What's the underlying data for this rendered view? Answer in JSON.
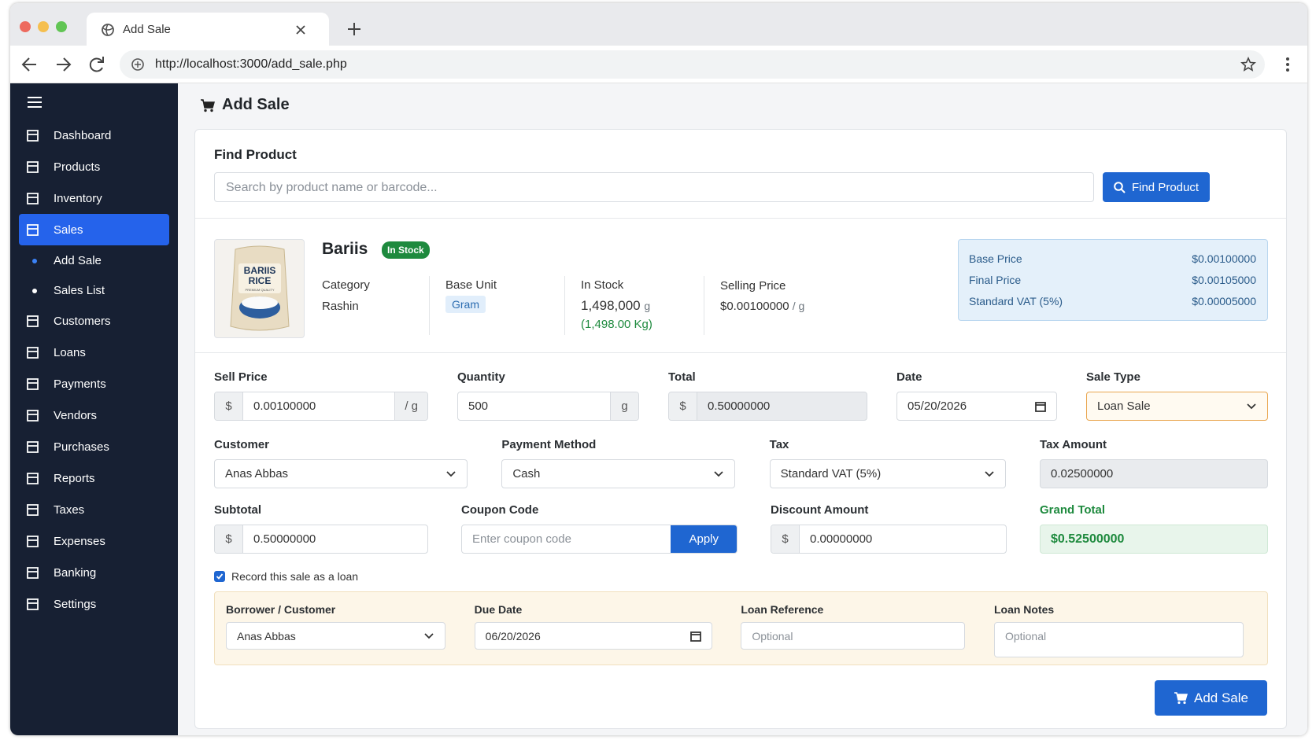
{
  "browser": {
    "tab_title": "Add Sale",
    "url": "http://localhost:3000/add_sale.php"
  },
  "sidebar": {
    "items": [
      {
        "label": "Dashboard"
      },
      {
        "label": "Products"
      },
      {
        "label": "Inventory"
      },
      {
        "label": "Sales",
        "active": true,
        "sub_items": [
          "Add Sale",
          "Sales List"
        ]
      },
      {
        "label": "Customers"
      },
      {
        "label": "Loans"
      },
      {
        "label": "Payments"
      },
      {
        "label": "Vendors"
      },
      {
        "label": "Purchases"
      },
      {
        "label": "Reports"
      },
      {
        "label": "Taxes"
      },
      {
        "label": "Expenses"
      },
      {
        "label": "Banking"
      },
      {
        "label": "Settings"
      }
    ]
  },
  "page": {
    "title": "Add Sale"
  },
  "find_product": {
    "title": "Find Product",
    "placeholder": "Search by product name or barcode...",
    "button": "Find Product"
  },
  "product": {
    "image_text": {
      "line1": "BARIIS",
      "line2": "RICE",
      "line3": "PREMIUM QUALITY"
    },
    "name": "Bariis",
    "status": "In Stock",
    "category": {
      "label": "Category",
      "value": "Rashin"
    },
    "base_unit": {
      "label": "Base Unit",
      "value": "Gram"
    },
    "in_stock": {
      "label": "In Stock",
      "quantity": "1,498,000",
      "unit": "g",
      "converted": "(1,498.00 Kg)"
    },
    "selling_price": {
      "label": "Selling Price",
      "value": "$0.00100000",
      "unit": "/ g"
    }
  },
  "price_summary": [
    {
      "label": "Base Price",
      "value": "$0.00100000"
    },
    {
      "label": "Final Price",
      "value": "$0.00105000"
    },
    {
      "label": "Standard VAT (5%)",
      "value": "$0.00005000"
    }
  ],
  "form": {
    "sell_price": {
      "label": "Sell Price",
      "prefix": "$",
      "value": "0.00100000",
      "suffix": "/ g"
    },
    "quantity": {
      "label": "Quantity",
      "value": "500",
      "suffix": "g"
    },
    "total": {
      "label": "Total",
      "prefix": "$",
      "value": "0.50000000"
    },
    "date": {
      "label": "Date",
      "value": "05/20/2026"
    },
    "sale_type": {
      "label": "Sale Type",
      "value": "Loan Sale"
    },
    "customer": {
      "label": "Customer",
      "value": "Anas Abbas"
    },
    "payment_method": {
      "label": "Payment Method",
      "value": "Cash"
    },
    "tax": {
      "label": "Tax",
      "value": "Standard VAT (5%)"
    },
    "tax_amount": {
      "label": "Tax Amount",
      "value": "0.02500000"
    },
    "subtotal": {
      "label": "Subtotal",
      "prefix": "$",
      "value": "0.50000000"
    },
    "coupon_code": {
      "label": "Coupon Code",
      "placeholder": "Enter coupon code",
      "button": "Apply"
    },
    "discount_amount": {
      "label": "Discount Amount",
      "prefix": "$",
      "value": "0.00000000"
    },
    "grand_total": {
      "label": "Grand Total",
      "value": "$0.52500000"
    },
    "record_as_loan": {
      "label": "Record this sale as a loan",
      "checked": true
    }
  },
  "loan": {
    "borrower": {
      "label": "Borrower / Customer",
      "value": "Anas Abbas"
    },
    "due_date": {
      "label": "Due Date",
      "value": "06/20/2026"
    },
    "reference": {
      "label": "Loan Reference",
      "placeholder": "Optional"
    },
    "notes": {
      "label": "Loan Notes",
      "placeholder": "Optional"
    }
  },
  "submit": "Add Sale"
}
